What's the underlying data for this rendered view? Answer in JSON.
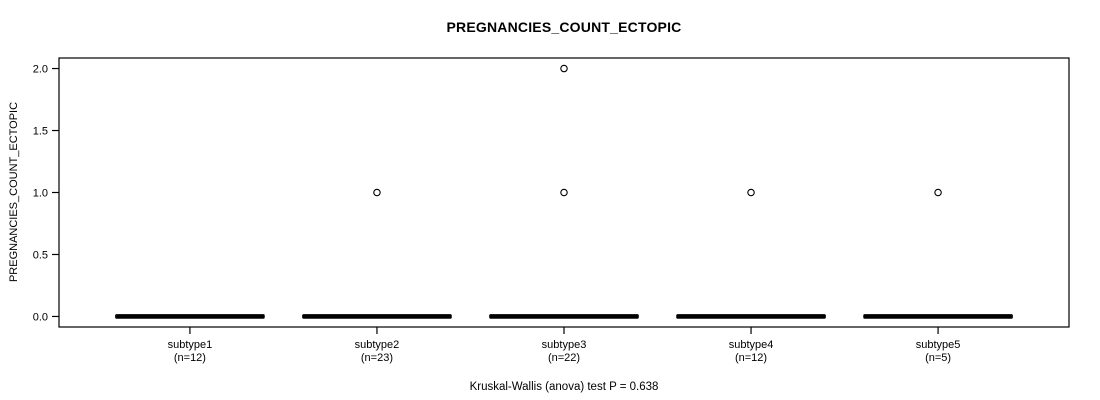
{
  "figure": {
    "title": "PREGNANCIES_COUNT_ECTOPIC",
    "y_axis_label": "PREGNANCIES_COUNT_ECTOPIC",
    "annotation": "Kruskal-Wallis (anova) test P = 0.638",
    "background_color": "#ffffff",
    "foreground_color": "#000000"
  },
  "chart_data": {
    "type": "boxplot",
    "title": "PREGNANCIES_COUNT_ECTOPIC",
    "xlabel": "",
    "ylabel": "PREGNANCIES_COUNT_ECTOPIC",
    "annotation": "Kruskal-Wallis (anova) test P = 0.638",
    "grid": false,
    "legend": null,
    "xlim": [
      0.3,
      5.7
    ],
    "ylim": [
      -0.085,
      2.085
    ],
    "box_width": 0.8,
    "y_ticks": [
      {
        "value": 0.0,
        "label": "0.0"
      },
      {
        "value": 0.5,
        "label": "0.5"
      },
      {
        "value": 1.0,
        "label": "1.0"
      },
      {
        "value": 1.5,
        "label": "1.5"
      },
      {
        "value": 2.0,
        "label": "2.0"
      }
    ],
    "categories": [
      {
        "label": "subtype1",
        "sublabel": "(n=12)",
        "n": 12,
        "box": {
          "min": 0,
          "q1": 0,
          "median": 0,
          "q3": 0,
          "max": 0
        },
        "outliers": []
      },
      {
        "label": "subtype2",
        "sublabel": "(n=23)",
        "n": 23,
        "box": {
          "min": 0,
          "q1": 0,
          "median": 0,
          "q3": 0,
          "max": 0
        },
        "outliers": [
          1
        ]
      },
      {
        "label": "subtype3",
        "sublabel": "(n=22)",
        "n": 22,
        "box": {
          "min": 0,
          "q1": 0,
          "median": 0,
          "q3": 0,
          "max": 0
        },
        "outliers": [
          1,
          2
        ]
      },
      {
        "label": "subtype4",
        "sublabel": "(n=12)",
        "n": 12,
        "box": {
          "min": 0,
          "q1": 0,
          "median": 0,
          "q3": 0,
          "max": 0
        },
        "outliers": [
          1
        ]
      },
      {
        "label": "subtype5",
        "sublabel": "(n=5)",
        "n": 5,
        "box": {
          "min": 0,
          "q1": 0,
          "median": 0,
          "q3": 0,
          "max": 0
        },
        "outliers": [
          1
        ]
      }
    ]
  }
}
